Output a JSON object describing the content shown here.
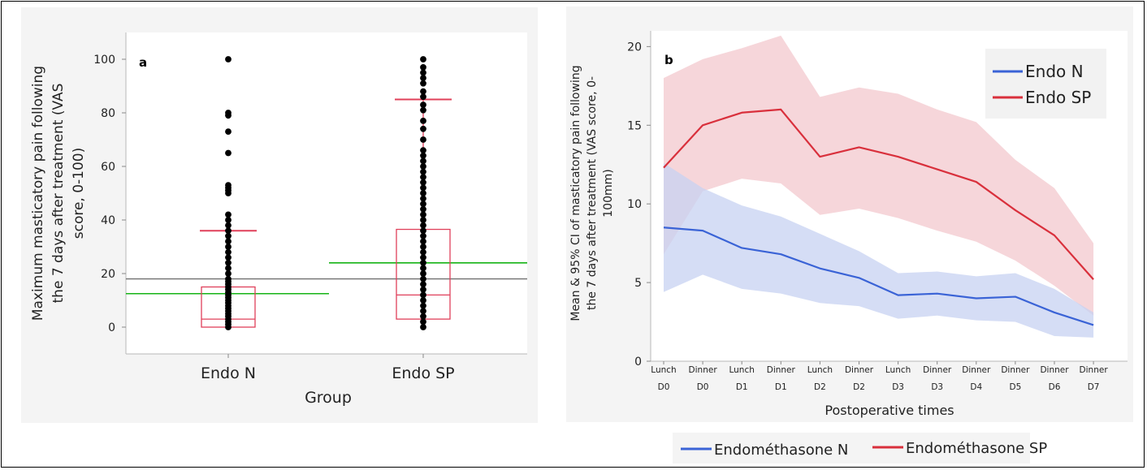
{
  "chart_data": [
    {
      "type": "box",
      "panel_label": "a",
      "xlabel": "Group",
      "ylabel_lines": [
        "Maximum masticatory pain following",
        "the 7 days after treatment (VAS",
        "score, 0-100)"
      ],
      "ylim": [
        -10,
        110
      ],
      "yticks": [
        0,
        20,
        40,
        60,
        80,
        100
      ],
      "categories": [
        "Endo N",
        "Endo SP"
      ],
      "boxes": [
        {
          "name": "Endo N",
          "q1": 0,
          "median": 3,
          "q3": 15,
          "lower_whisker": 0,
          "upper_whisker": 36,
          "mean": 12.5
        },
        {
          "name": "Endo SP",
          "q1": 3,
          "median": 12,
          "q3": 36.5,
          "lower_whisker": 0,
          "upper_whisker": 85,
          "mean": 24
        }
      ],
      "grand_mean": 18,
      "points": [
        {
          "group": "Endo N",
          "values": [
            0,
            1,
            2,
            3,
            4,
            5,
            6,
            7,
            8,
            9,
            10,
            11,
            12,
            13,
            14,
            15,
            16,
            17,
            18,
            20,
            22,
            24,
            26,
            28,
            30,
            32,
            34,
            36,
            38,
            40,
            42,
            50,
            51,
            52,
            53,
            65,
            73,
            79,
            80,
            100
          ]
        },
        {
          "group": "Endo SP",
          "values": [
            0,
            2,
            4,
            6,
            8,
            10,
            12,
            14,
            16,
            18,
            20,
            22,
            24,
            26,
            28,
            30,
            32,
            34,
            36,
            38,
            40,
            42,
            44,
            46,
            48,
            50,
            52,
            54,
            56,
            58,
            60,
            62,
            64,
            66,
            70,
            74,
            77,
            81,
            83,
            86,
            88,
            91,
            93,
            95,
            97,
            100
          ]
        }
      ],
      "colors": {
        "box": "#e0405a",
        "mean": "#16b316",
        "grand_mean": "#707070",
        "points": "#000000"
      }
    },
    {
      "type": "line",
      "panel_label": "b",
      "xlabel": "Postoperative times",
      "ylabel_lines": [
        "Mean & 95% CI of masticatory pain following",
        "the 7 days after treatment (VAS score, 0-",
        "100mm)"
      ],
      "ylim": [
        0,
        21
      ],
      "yticks": [
        0,
        5,
        10,
        15,
        20
      ],
      "categories": [
        [
          "Lunch",
          "D0"
        ],
        [
          "Dinner",
          "D0"
        ],
        [
          "Lunch",
          "D1"
        ],
        [
          "Dinner",
          "D1"
        ],
        [
          "Lunch",
          "D2"
        ],
        [
          "Dinner",
          "D2"
        ],
        [
          "Lunch",
          "D3"
        ],
        [
          "Dinner",
          "D3"
        ],
        [
          "Dinner",
          "D4"
        ],
        [
          "Dinner",
          "D5"
        ],
        [
          "Dinner",
          "D6"
        ],
        [
          "Dinner",
          "D7"
        ]
      ],
      "series": [
        {
          "name": "Endo N",
          "color": "#3a63d6",
          "band_color": "#c7d2f2",
          "values": [
            8.5,
            8.3,
            7.2,
            6.8,
            5.9,
            5.3,
            4.2,
            4.3,
            4.0,
            4.1,
            3.1,
            2.3
          ],
          "lower": [
            4.4,
            5.5,
            4.6,
            4.3,
            3.7,
            3.5,
            2.7,
            2.9,
            2.6,
            2.5,
            1.6,
            1.5
          ],
          "upper": [
            12.6,
            11.0,
            9.9,
            9.2,
            8.1,
            7.0,
            5.6,
            5.7,
            5.4,
            5.6,
            4.6,
            3.1
          ]
        },
        {
          "name": "Endo SP",
          "color": "#d9303c",
          "band_color": "#f3c8cd",
          "values": [
            12.3,
            15.0,
            15.8,
            16.0,
            13.0,
            13.6,
            13.0,
            12.2,
            11.4,
            9.6,
            8.0,
            5.2
          ],
          "lower": [
            6.8,
            10.8,
            11.6,
            11.3,
            9.3,
            9.7,
            9.1,
            8.3,
            7.6,
            6.4,
            4.8,
            2.9
          ],
          "upper": [
            18.0,
            19.2,
            19.9,
            20.7,
            16.8,
            17.4,
            17.0,
            16.0,
            15.2,
            12.8,
            11.0,
            7.5
          ]
        }
      ],
      "legend": {
        "position": "top-right",
        "entries": [
          "Endo N",
          "Endo SP"
        ]
      }
    }
  ],
  "bottom_legend": [
    {
      "label": "Endométhasone N",
      "color": "#3a63d6"
    },
    {
      "label": "Endométhasone SP",
      "color": "#d9303c"
    }
  ]
}
